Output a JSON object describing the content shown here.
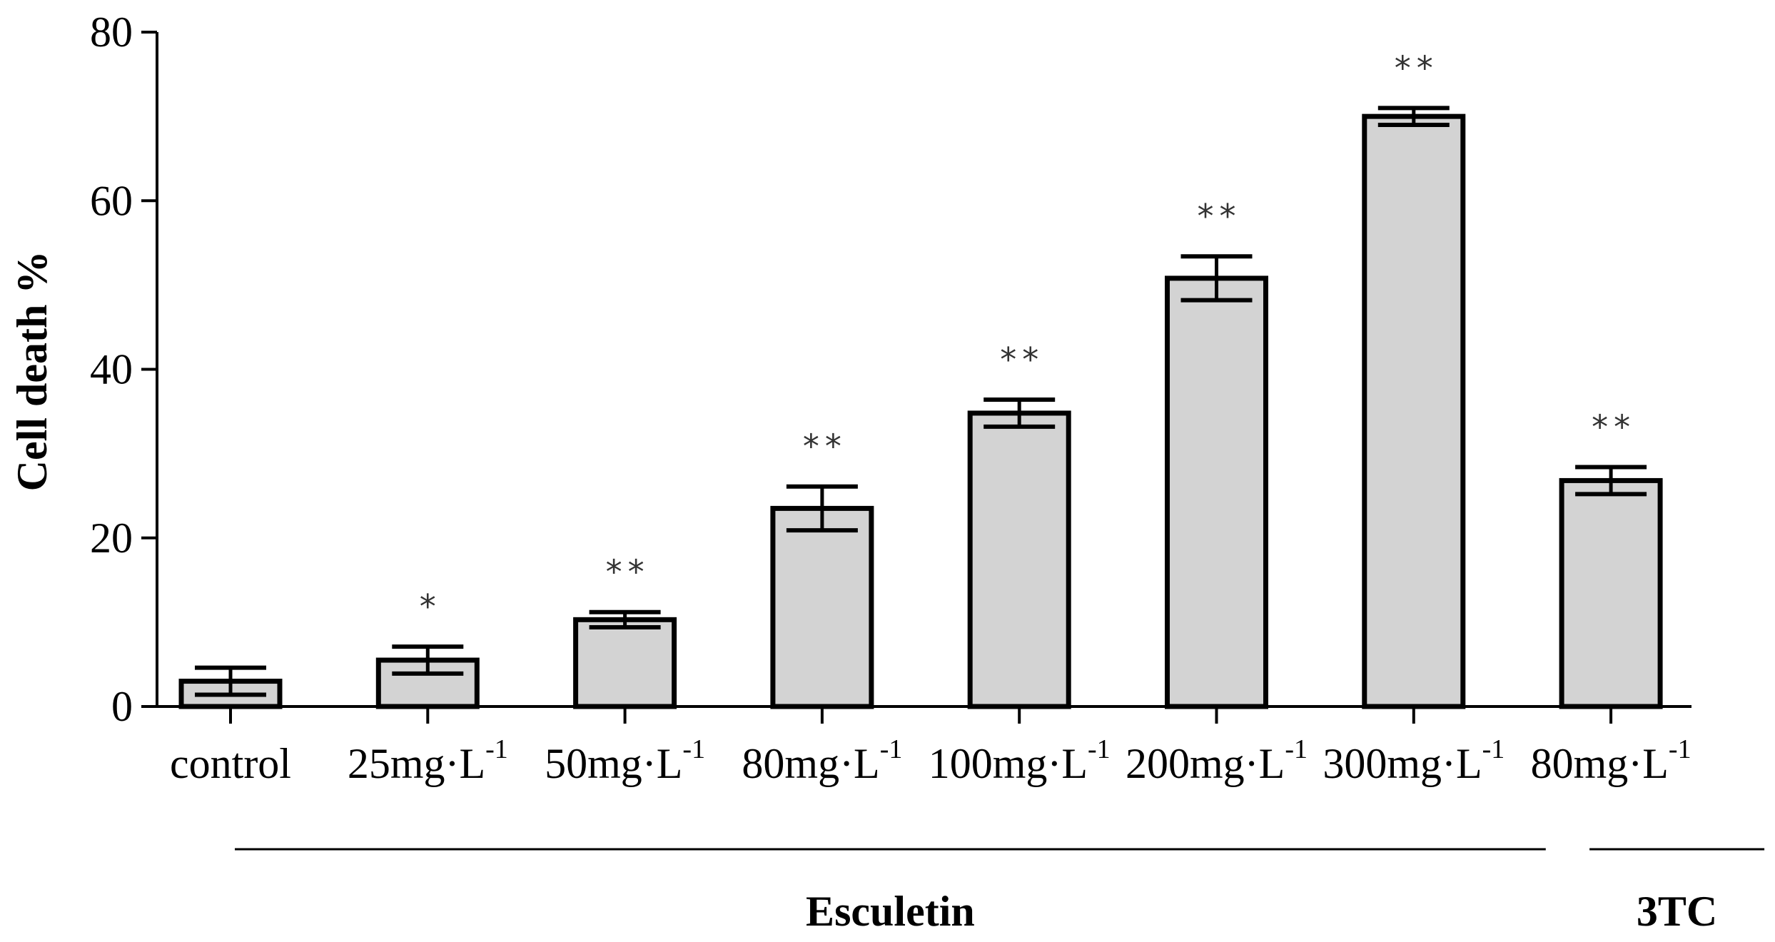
{
  "chart_data": {
    "type": "bar",
    "title": "",
    "xlabel": "",
    "ylabel": "Cell death %",
    "ylim": [
      0,
      80
    ],
    "yticks": [
      "0",
      "20",
      "40",
      "60",
      "80"
    ],
    "grid": false,
    "bar_color": "#d3d3d3",
    "edge_color": "#000000",
    "categories": [
      {
        "label": "control",
        "sup": ""
      },
      {
        "label": "25mg·L",
        "sup": "-1"
      },
      {
        "label": "50mg·L",
        "sup": "-1"
      },
      {
        "label": "80mg·L",
        "sup": "-1"
      },
      {
        "label": "100mg·L",
        "sup": "-1"
      },
      {
        "label": "200mg·L",
        "sup": "-1"
      },
      {
        "label": "300mg·L",
        "sup": "-1"
      },
      {
        "label": "80mg·L",
        "sup": "-1"
      }
    ],
    "values": [
      3.0,
      5.5,
      10.3,
      23.5,
      34.8,
      50.8,
      70.0,
      26.8
    ],
    "errors": [
      1.6,
      1.6,
      0.9,
      2.6,
      1.6,
      2.6,
      1.0,
      1.6
    ],
    "significance": [
      "",
      "*",
      "**",
      "**",
      "**",
      "**",
      "**",
      "**"
    ],
    "groups": [
      {
        "name": "Esculetin",
        "from": 0,
        "to": 6
      },
      {
        "name": "3TC",
        "from": 7,
        "to": 7
      }
    ]
  }
}
